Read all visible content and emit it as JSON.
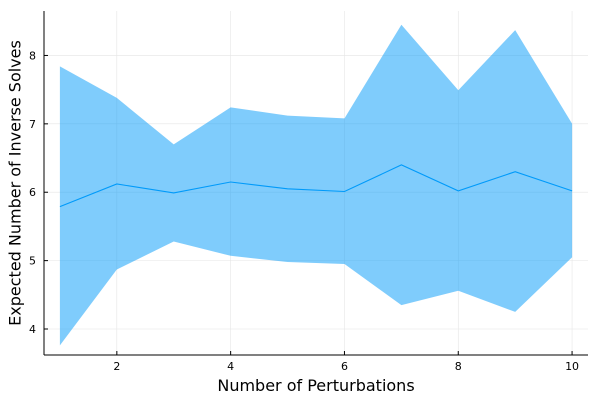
{
  "chart_data": {
    "type": "line",
    "title": "",
    "xlabel": "Number of Perturbations",
    "ylabel": "Expected Number of Inverse Solves",
    "xlim": [
      0.72,
      10.28
    ],
    "ylim": [
      3.62,
      8.65
    ],
    "x_ticks": [
      2,
      4,
      6,
      8,
      10
    ],
    "y_ticks": [
      4,
      5,
      6,
      7,
      8
    ],
    "grid": true,
    "legend": "none",
    "series": [
      {
        "x": [
          1,
          2,
          3,
          4,
          5,
          6,
          7,
          8,
          9,
          10
        ],
        "mean": [
          5.79,
          6.12,
          5.99,
          6.15,
          6.05,
          6.01,
          6.4,
          6.02,
          6.3,
          6.02
        ],
        "upper": [
          7.84,
          7.38,
          6.7,
          7.24,
          7.12,
          7.08,
          8.45,
          7.49,
          8.37,
          7.0
        ],
        "lower": [
          3.76,
          4.87,
          5.28,
          5.07,
          4.98,
          4.95,
          4.35,
          4.56,
          4.25,
          5.05
        ]
      }
    ],
    "colors": {
      "line": "#009AFA",
      "band": "#009AFA",
      "grid": "#E5E5E5",
      "axis": "#000000"
    }
  }
}
